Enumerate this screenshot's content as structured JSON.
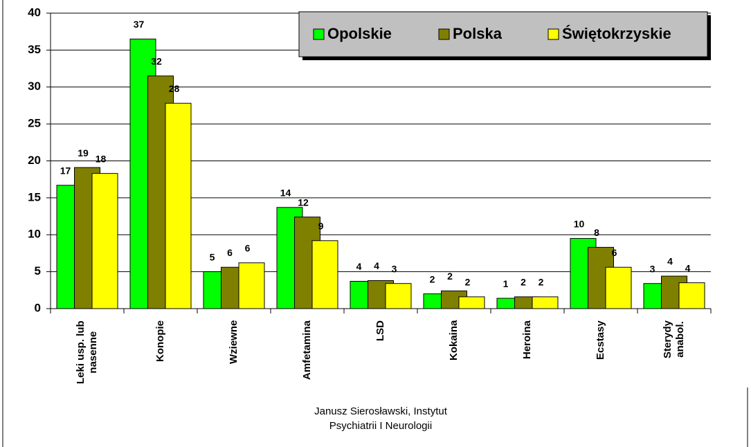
{
  "chart_data": {
    "type": "bar",
    "categories": [
      "Leki usp. lub\nnasenne",
      "Konopie",
      "Wziewne",
      "Amfetamina",
      "LSD",
      "Kokaina",
      "Heroina",
      "Ecstasy",
      "Sterydy\nanabol."
    ],
    "series": [
      {
        "name": "Opolskie",
        "color": "#00ff00",
        "values": [
          16.7,
          36.5,
          5.0,
          13.7,
          3.7,
          2.0,
          1.4,
          9.5,
          3.4
        ],
        "value_labels": [
          "17",
          "37",
          "5",
          "14",
          "4",
          "2",
          "1",
          "10",
          "3"
        ]
      },
      {
        "name": "Polska",
        "color": "#808000",
        "values": [
          19.1,
          31.5,
          5.6,
          12.4,
          3.8,
          2.4,
          1.6,
          8.3,
          4.4
        ],
        "value_labels": [
          "19",
          "32",
          "6",
          "12",
          "4",
          "2",
          "2",
          "8",
          "4"
        ]
      },
      {
        "name": "Świętokrzyskie",
        "color": "#ffff00",
        "values": [
          18.3,
          27.8,
          6.2,
          9.2,
          3.4,
          1.6,
          1.6,
          5.6,
          3.5
        ],
        "value_labels": [
          "18",
          "28",
          "6",
          "9",
          "3",
          "2",
          "2",
          "6",
          "4"
        ]
      }
    ],
    "ylim": [
      0,
      40
    ],
    "yticks": [
      0,
      5,
      10,
      15,
      20,
      25,
      30,
      35,
      40
    ],
    "grid": true,
    "legend": "top-right",
    "source": "Janusz Sierosławski, Instytut\nPsychiatrii I Neurologii"
  }
}
